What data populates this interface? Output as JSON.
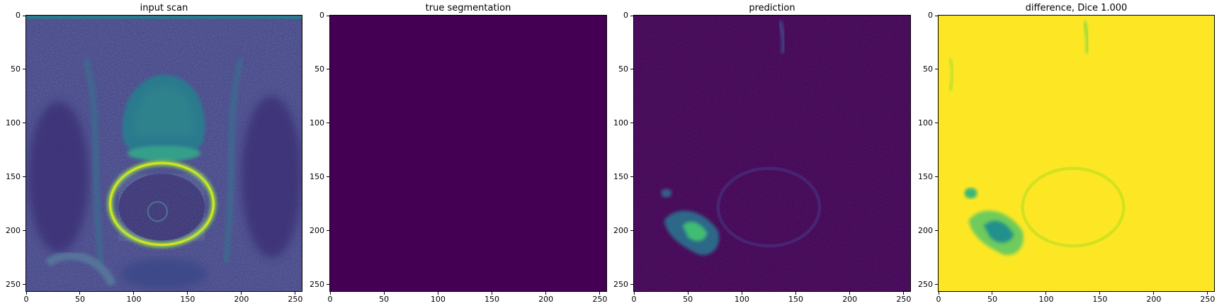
{
  "chart_data": [
    {
      "type": "heatmap",
      "title": "input scan",
      "xlabel": "",
      "ylabel": "",
      "xlim": [
        0,
        256
      ],
      "ylim": [
        256,
        0
      ],
      "x_ticks": [
        0,
        50,
        100,
        150,
        200,
        250
      ],
      "y_ticks": [
        0,
        50,
        100,
        150,
        200,
        250
      ],
      "colormap": "viridis",
      "content": "mri"
    },
    {
      "type": "heatmap",
      "title": "true segmentation",
      "xlabel": "",
      "ylabel": "",
      "xlim": [
        0,
        256
      ],
      "ylim": [
        256,
        0
      ],
      "x_ticks": [
        0,
        50,
        100,
        150,
        200,
        250
      ],
      "y_ticks": [
        0,
        50,
        100,
        150,
        200,
        250
      ],
      "colormap": "viridis",
      "content": "uniform"
    },
    {
      "type": "heatmap",
      "title": "prediction",
      "xlabel": "",
      "ylabel": "",
      "xlim": [
        0,
        256
      ],
      "ylim": [
        256,
        0
      ],
      "x_ticks": [
        0,
        50,
        100,
        150,
        200,
        250
      ],
      "y_ticks": [
        0,
        50,
        100,
        150,
        200,
        250
      ],
      "colormap": "viridis",
      "content": "prediction"
    },
    {
      "type": "heatmap",
      "title": "difference, Dice 1.000",
      "xlabel": "",
      "ylabel": "",
      "xlim": [
        0,
        256
      ],
      "ylim": [
        256,
        0
      ],
      "x_ticks": [
        0,
        50,
        100,
        150,
        200,
        250
      ],
      "y_ticks": [
        0,
        50,
        100,
        150,
        200,
        250
      ],
      "colormap": "viridis",
      "content": "difference"
    }
  ],
  "colors": {
    "viridis_dark": "#440154",
    "viridis_blue": "#3b528b",
    "viridis_teal": "#21918c",
    "viridis_green": "#5ec962",
    "viridis_yellow": "#fde725"
  }
}
